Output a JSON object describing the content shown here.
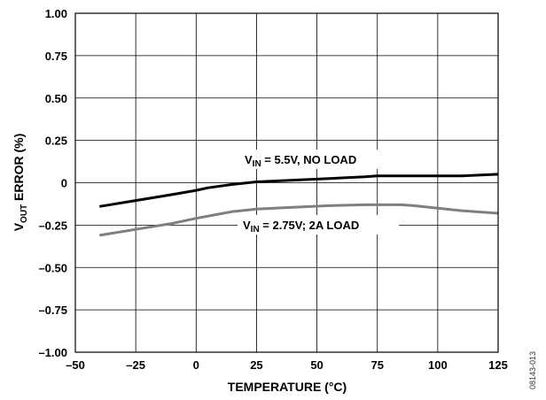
{
  "chart_data": {
    "type": "line",
    "xlabel": "TEMPERATURE (°C)",
    "ylabel": {
      "main": "V",
      "sub": "OUT",
      "rest": " ERROR (%)"
    },
    "xlim": [
      -50,
      125
    ],
    "ylim": [
      -1.0,
      1.0
    ],
    "xticks": [
      -50,
      -25,
      0,
      25,
      50,
      75,
      100,
      125
    ],
    "xtick_labels": [
      "–50",
      "–25",
      "0",
      "25",
      "50",
      "75",
      "100",
      "125"
    ],
    "yticks": [
      1.0,
      0.75,
      0.5,
      0.25,
      0,
      -0.25,
      -0.5,
      -0.75,
      -1.0
    ],
    "ytick_labels": [
      "1.00",
      "0.75",
      "0.50",
      "0.25",
      "0",
      "–0.25",
      "–0.50",
      "–0.75",
      "–1.00"
    ],
    "grid": true,
    "series": [
      {
        "name": "VIN = 5.5V, NO LOAD",
        "color": "#000000",
        "x": [
          -40,
          -25,
          -10,
          0,
          5,
          15,
          25,
          40,
          55,
          70,
          75,
          90,
          100,
          110,
          125
        ],
        "y": [
          -0.14,
          -0.105,
          -0.07,
          -0.045,
          -0.03,
          -0.01,
          0.005,
          0.015,
          0.025,
          0.035,
          0.04,
          0.04,
          0.04,
          0.04,
          0.05
        ]
      },
      {
        "name": "VIN = 2.75V; 2A LOAD",
        "color": "#7f7f7f",
        "x": [
          -40,
          -25,
          -10,
          0,
          15,
          25,
          40,
          55,
          70,
          85,
          90,
          100,
          110,
          125
        ],
        "y": [
          -0.31,
          -0.275,
          -0.24,
          -0.21,
          -0.17,
          -0.155,
          -0.145,
          -0.135,
          -0.13,
          -0.13,
          -0.135,
          -0.15,
          -0.165,
          -0.18
        ]
      }
    ],
    "annotations": [
      {
        "main": "V",
        "sub": "IN",
        "rest": " = 5.5V, NO LOAD"
      },
      {
        "main": "V",
        "sub": "IN",
        "rest": " = 2.75V; 2A LOAD"
      }
    ]
  },
  "figure_id": "08143-013"
}
